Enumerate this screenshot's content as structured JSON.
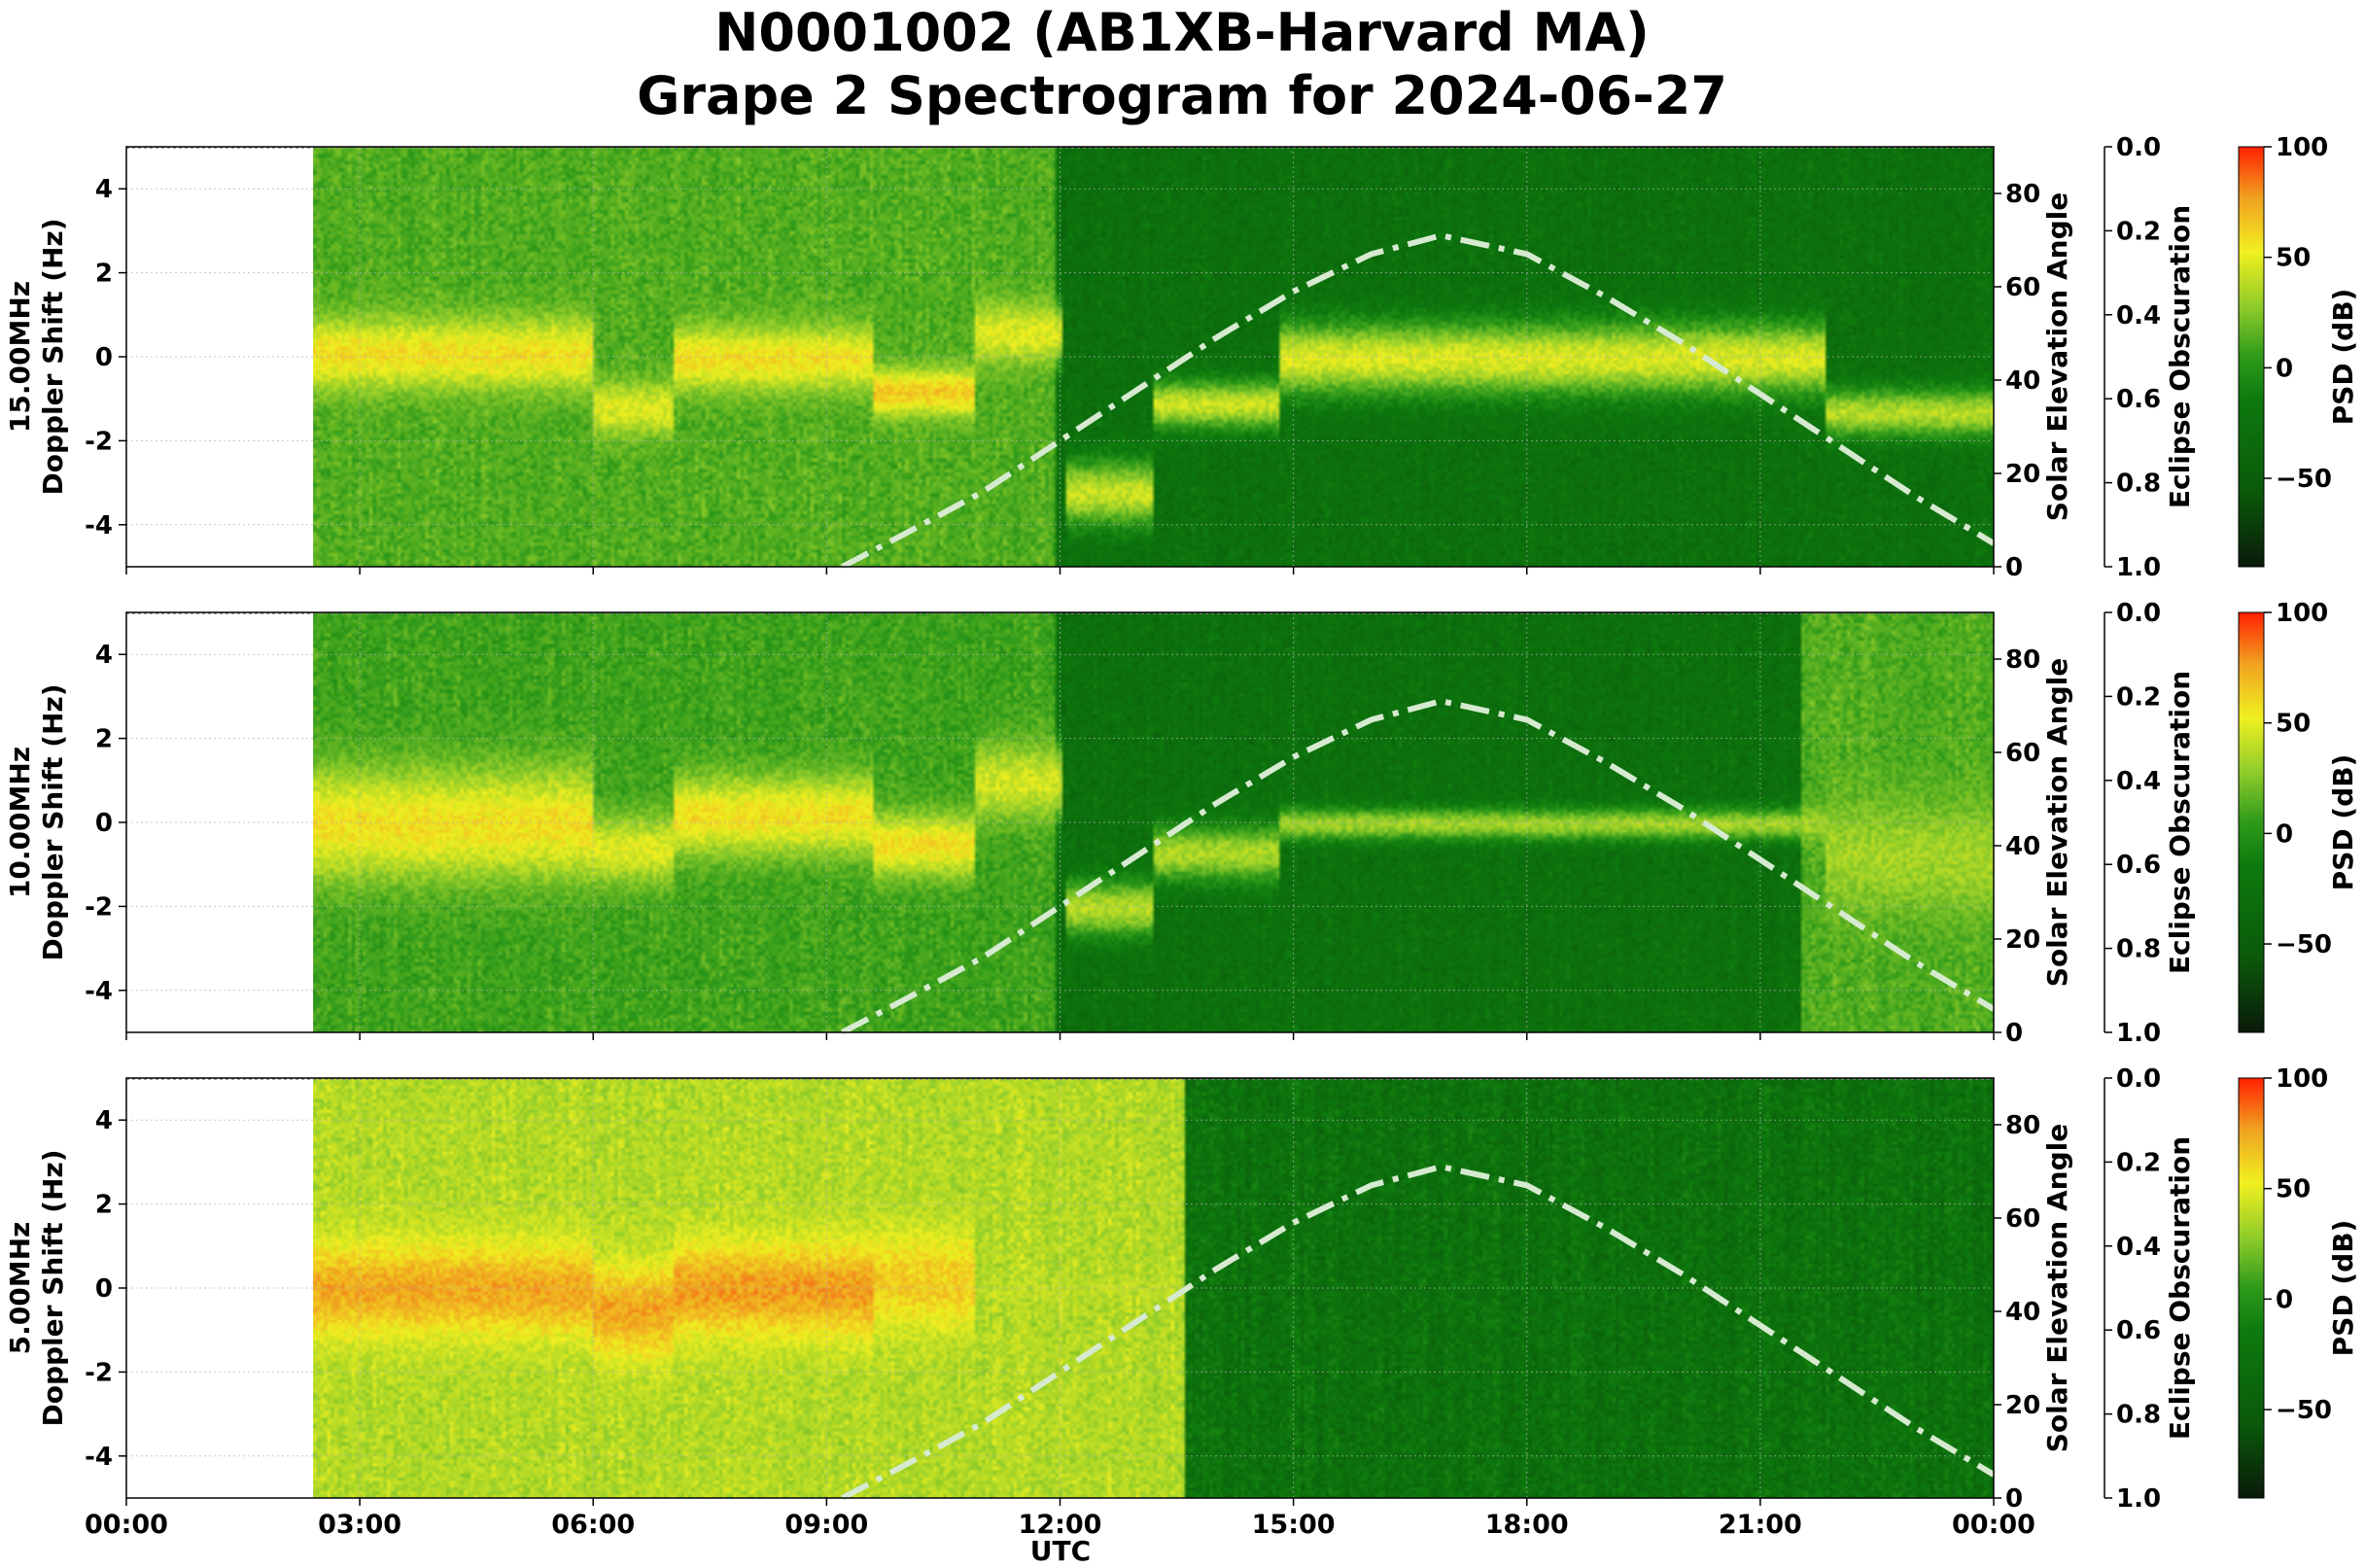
{
  "title_line1": "N0001002 (AB1XB-Harvard MA)",
  "title_line2": "Grape 2 Spectrogram for 2024-06-27",
  "xlabel": "UTC",
  "x_ticks": [
    "00:00",
    "03:00",
    "06:00",
    "09:00",
    "12:00",
    "15:00",
    "18:00",
    "21:00",
    "00:00"
  ],
  "colors": {
    "background_no_data": "#ffffff",
    "solar_curve": "#d6ead0",
    "colormap": [
      "#0a1a0a",
      "#0a5a0a",
      "#0e7a0e",
      "#2e9a1a",
      "#8fcc2a",
      "#f0f020",
      "#f0a020",
      "#ff2000"
    ]
  },
  "chart_data": [
    {
      "type": "heatmap",
      "panel_label": "15.00MHz",
      "ylabel": "15.00MHz\nDoppler Shift (Hz)",
      "ylim": [
        -5,
        5
      ],
      "y_ticks": [
        4,
        2,
        0,
        -2,
        -4
      ],
      "x_range_utc_hours": [
        0,
        24
      ],
      "data_start_utc_hours": 2.4,
      "solar_axis": {
        "label": "Solar Elevation Angle",
        "ylim": [
          0,
          90
        ],
        "ticks": [
          80,
          60,
          40,
          20,
          0
        ]
      },
      "eclipse_axis": {
        "label": "Eclipse Obscuration",
        "ylim": [
          1.0,
          0.0
        ],
        "ticks": [
          "0.0",
          "0.2",
          "0.4",
          "0.6",
          "0.8",
          "1.0"
        ]
      },
      "colorbar": {
        "label": "PSD (dB)",
        "range": [
          -90,
          100
        ],
        "ticks": [
          "100",
          "50",
          "0",
          "−50"
        ]
      },
      "solar_elevation": {
        "x_utc_hours": [
          9.2,
          10,
          11,
          12,
          13,
          14,
          15,
          16,
          16.9,
          18,
          19,
          20,
          21,
          22,
          23,
          24
        ],
        "y_deg": [
          0,
          7,
          16,
          27,
          38,
          49,
          59,
          67,
          71,
          67,
          58,
          48,
          37,
          26,
          15,
          5
        ]
      },
      "signal_segments": [
        {
          "t0": 2.4,
          "t1": 6.0,
          "f": 0.1,
          "spread": 0.9,
          "db": 55
        },
        {
          "t0": 6.0,
          "t1": 7.0,
          "f": -1.2,
          "spread": 0.7,
          "db": 45
        },
        {
          "t0": 7.0,
          "t1": 9.6,
          "f": 0.0,
          "spread": 0.8,
          "db": 55
        },
        {
          "t0": 9.6,
          "t1": 10.9,
          "f": -0.8,
          "spread": 0.6,
          "db": 62
        },
        {
          "t0": 10.9,
          "t1": 12.0,
          "f": 0.6,
          "spread": 0.8,
          "db": 45
        },
        {
          "t0": 12.05,
          "t1": 13.2,
          "f": -3.2,
          "spread": 0.8,
          "db": 40
        },
        {
          "t0": 13.2,
          "t1": 14.8,
          "f": -1.1,
          "spread": 0.6,
          "db": 40
        },
        {
          "t0": 14.8,
          "t1": 21.8,
          "f": 0.0,
          "spread": 0.9,
          "db": 45
        },
        {
          "t0": 21.8,
          "t1": 24.0,
          "f": -1.3,
          "spread": 0.6,
          "db": 35
        }
      ],
      "background_segments": [
        {
          "t0": 2.4,
          "t1": 11.9,
          "db": 5
        },
        {
          "t0": 11.9,
          "t1": 24.0,
          "db": -35
        }
      ]
    },
    {
      "type": "heatmap",
      "panel_label": "10.00MHz",
      "ylabel": "10.00MHz\nDoppler Shift (Hz)",
      "ylim": [
        -5,
        5
      ],
      "y_ticks": [
        4,
        2,
        0,
        -2,
        -4
      ],
      "x_range_utc_hours": [
        0,
        24
      ],
      "data_start_utc_hours": 2.4,
      "solar_axis": {
        "label": "Solar Elevation Angle",
        "ylim": [
          0,
          90
        ],
        "ticks": [
          80,
          60,
          40,
          20,
          0
        ]
      },
      "eclipse_axis": {
        "label": "Eclipse Obscuration",
        "ylim": [
          1.0,
          0.0
        ],
        "ticks": [
          "0.0",
          "0.2",
          "0.4",
          "0.6",
          "0.8",
          "1.0"
        ]
      },
      "colorbar": {
        "label": "PSD (dB)",
        "range": [
          -90,
          100
        ],
        "ticks": [
          "100",
          "50",
          "0",
          "−50"
        ]
      },
      "solar_elevation": {
        "x_utc_hours": [
          9.2,
          10,
          11,
          12,
          13,
          14,
          15,
          16,
          16.9,
          18,
          19,
          20,
          21,
          22,
          23,
          24
        ],
        "y_deg": [
          0,
          7,
          16,
          27,
          38,
          49,
          59,
          67,
          71,
          67,
          58,
          48,
          37,
          26,
          15,
          5
        ]
      },
      "signal_segments": [
        {
          "t0": 2.4,
          "t1": 6.0,
          "f": 0.0,
          "spread": 1.4,
          "db": 55
        },
        {
          "t0": 6.0,
          "t1": 7.0,
          "f": -0.6,
          "spread": 0.9,
          "db": 45
        },
        {
          "t0": 7.0,
          "t1": 9.6,
          "f": 0.2,
          "spread": 1.0,
          "db": 55
        },
        {
          "t0": 9.6,
          "t1": 10.9,
          "f": -0.5,
          "spread": 0.8,
          "db": 55
        },
        {
          "t0": 10.9,
          "t1": 12.0,
          "f": 1.0,
          "spread": 1.0,
          "db": 42
        },
        {
          "t0": 12.05,
          "t1": 13.2,
          "f": -2.0,
          "spread": 0.7,
          "db": 35
        },
        {
          "t0": 13.2,
          "t1": 14.8,
          "f": -0.7,
          "spread": 0.7,
          "db": 32
        },
        {
          "t0": 14.8,
          "t1": 21.8,
          "f": 0.0,
          "spread": 0.4,
          "db": 30
        },
        {
          "t0": 21.8,
          "t1": 24.0,
          "f": -0.8,
          "spread": 1.4,
          "db": 30
        }
      ],
      "background_segments": [
        {
          "t0": 2.4,
          "t1": 11.9,
          "db": 0
        },
        {
          "t0": 11.9,
          "t1": 21.5,
          "db": -35
        },
        {
          "t0": 21.5,
          "t1": 24.0,
          "db": 5
        }
      ]
    },
    {
      "type": "heatmap",
      "panel_label": "5.00MHz",
      "ylabel": "5.00MHz\nDoppler Shift (Hz)",
      "ylim": [
        -5,
        5
      ],
      "y_ticks": [
        4,
        2,
        0,
        -2,
        -4
      ],
      "x_range_utc_hours": [
        0,
        24
      ],
      "data_start_utc_hours": 2.4,
      "solar_axis": {
        "label": "Solar Elevation Angle",
        "ylim": [
          0,
          90
        ],
        "ticks": [
          80,
          60,
          40,
          20,
          0
        ]
      },
      "eclipse_axis": {
        "label": "Eclipse Obscuration",
        "ylim": [
          1.0,
          0.0
        ],
        "ticks": [
          "0.0",
          "0.2",
          "0.4",
          "0.6",
          "0.8",
          "1.0"
        ]
      },
      "colorbar": {
        "label": "PSD (dB)",
        "range": [
          -90,
          100
        ],
        "ticks": [
          "100",
          "50",
          "0",
          "−50"
        ]
      },
      "solar_elevation": {
        "x_utc_hours": [
          9.2,
          10,
          11,
          12,
          13,
          14,
          15,
          16,
          16.9,
          18,
          19,
          20,
          21,
          22,
          23,
          24
        ],
        "y_deg": [
          0,
          7,
          16,
          27,
          38,
          49,
          59,
          67,
          71,
          67,
          58,
          48,
          37,
          26,
          15,
          5
        ]
      },
      "signal_segments": [
        {
          "t0": 2.4,
          "t1": 6.0,
          "f": 0.0,
          "spread": 1.2,
          "db": 72
        },
        {
          "t0": 6.0,
          "t1": 7.0,
          "f": -0.5,
          "spread": 1.2,
          "db": 72
        },
        {
          "t0": 7.0,
          "t1": 9.6,
          "f": 0.0,
          "spread": 1.2,
          "db": 75
        },
        {
          "t0": 9.6,
          "t1": 10.9,
          "f": 0.2,
          "spread": 1.2,
          "db": 62
        },
        {
          "t0": 10.9,
          "t1": 13.6,
          "f": 0.0,
          "spread": 0.3,
          "db": 35
        }
      ],
      "background_segments": [
        {
          "t0": 2.4,
          "t1": 13.6,
          "db": 30
        },
        {
          "t0": 13.6,
          "t1": 24.0,
          "db": -30
        }
      ]
    }
  ]
}
